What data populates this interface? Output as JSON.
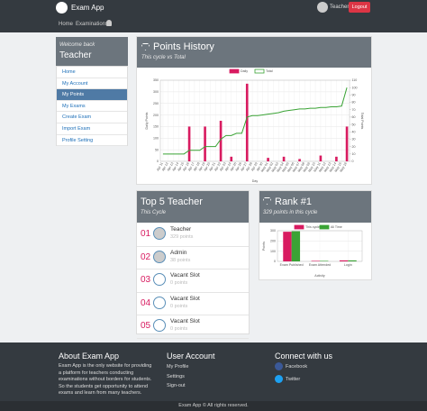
{
  "nav": {
    "brand": "Exam App",
    "links": [
      "Home",
      "Examinations"
    ],
    "user": "Teacher",
    "logout": "Logout"
  },
  "sidebar": {
    "greeting": "Welcome back",
    "name": "Teacher",
    "menu": [
      "Home",
      "My Account",
      "My Points",
      "My Exams",
      "Create Exam",
      "Import Exam",
      "Profile Setting"
    ]
  },
  "points_panel": {
    "title": "Points History",
    "subtitle": "This cycle vs Total"
  },
  "top_panel": {
    "title": "Top 5 Teacher",
    "subtitle": "This Cycle",
    "items": [
      {
        "rank": "01",
        "name": "Teacher",
        "points": "329 points"
      },
      {
        "rank": "02",
        "name": "Admin",
        "points": "38 points"
      },
      {
        "rank": "03",
        "name": "Vacant Slot",
        "points": "0 points"
      },
      {
        "rank": "04",
        "name": "Vacant Slot",
        "points": "0 points"
      },
      {
        "rank": "05",
        "name": "Vacant Slot",
        "points": "0 points"
      }
    ]
  },
  "rank_panel": {
    "title": "Rank #1",
    "subtitle": "329 points in this cycle"
  },
  "chart_data": [
    {
      "type": "combo",
      "xlabel": "Day",
      "ylabel": "Daily Points",
      "y2label": "Total Points",
      "categories": [
        "Apr 11",
        "Apr 12",
        "Apr 13",
        "Apr 14",
        "Apr 15",
        "Apr 16",
        "Apr 17",
        "Apr 18",
        "Apr 19",
        "Apr 20",
        "Apr 21",
        "Apr 22",
        "Apr 23",
        "Apr 24",
        "Apr 25",
        "Apr 26",
        "Apr 27",
        "Apr 28",
        "Apr 29",
        "Apr 30",
        "May 01",
        "May 02",
        "May 03",
        "May 04",
        "May 05",
        "May 06",
        "May 07",
        "May 08",
        "May 09",
        "May 10",
        "May 11",
        "May 12",
        "May 13",
        "May 14",
        "May 15",
        "May 16"
      ],
      "series": [
        {
          "name": "Daily",
          "color": "#d81b60",
          "values": [
            0,
            0,
            0,
            0,
            0,
            150,
            0,
            0,
            150,
            0,
            0,
            175,
            0,
            20,
            0,
            0,
            335,
            0,
            0,
            0,
            15,
            0,
            0,
            20,
            0,
            0,
            10,
            0,
            0,
            0,
            25,
            0,
            0,
            20,
            0,
            150
          ]
        },
        {
          "name": "Total",
          "color": "#3aa335",
          "axis": "y2",
          "values": [
            10,
            10,
            10,
            10,
            10,
            15,
            15,
            15,
            20,
            20,
            20,
            30,
            35,
            35,
            38,
            38,
            60,
            62,
            62,
            63,
            64,
            65,
            66,
            68,
            69,
            70,
            71,
            71,
            72,
            72,
            73,
            73,
            74,
            74,
            75,
            100
          ]
        }
      ],
      "ylim": [
        0,
        350
      ],
      "yticks": [
        0,
        50,
        100,
        150,
        200,
        250,
        300,
        350
      ],
      "y2lim": [
        0,
        110
      ],
      "y2ticks": [
        0,
        10,
        20,
        30,
        40,
        50,
        60,
        70,
        80,
        90,
        100,
        110
      ],
      "grid": true
    },
    {
      "type": "bar",
      "xlabel": "Activity",
      "ylabel": "Points",
      "categories": [
        "Exam Published",
        "Exam Attended",
        "Login"
      ],
      "series": [
        {
          "name": "This cycle",
          "color": "#d81b60",
          "values": [
            290,
            5,
            10
          ]
        },
        {
          "name": "All Time",
          "color": "#3aa335",
          "values": [
            295,
            5,
            10
          ]
        }
      ],
      "ylim": [
        0,
        300
      ],
      "yticks": [
        0,
        100,
        200,
        300
      ],
      "grid": true
    }
  ],
  "footer": {
    "about_title": "About Exam App",
    "about_text": "Exam App is the only website for providing a platform for teachers conducting examinations without borders for students. So the students get opportunity to attend exams and learn from many teachers.",
    "account_title": "User Account",
    "account_links": [
      "My Profile",
      "Settings",
      "Sign-out"
    ],
    "connect_title": "Connect with us",
    "social": [
      "Facebook",
      "Twitter"
    ],
    "copyright": "Exam App © All rights reserved."
  }
}
